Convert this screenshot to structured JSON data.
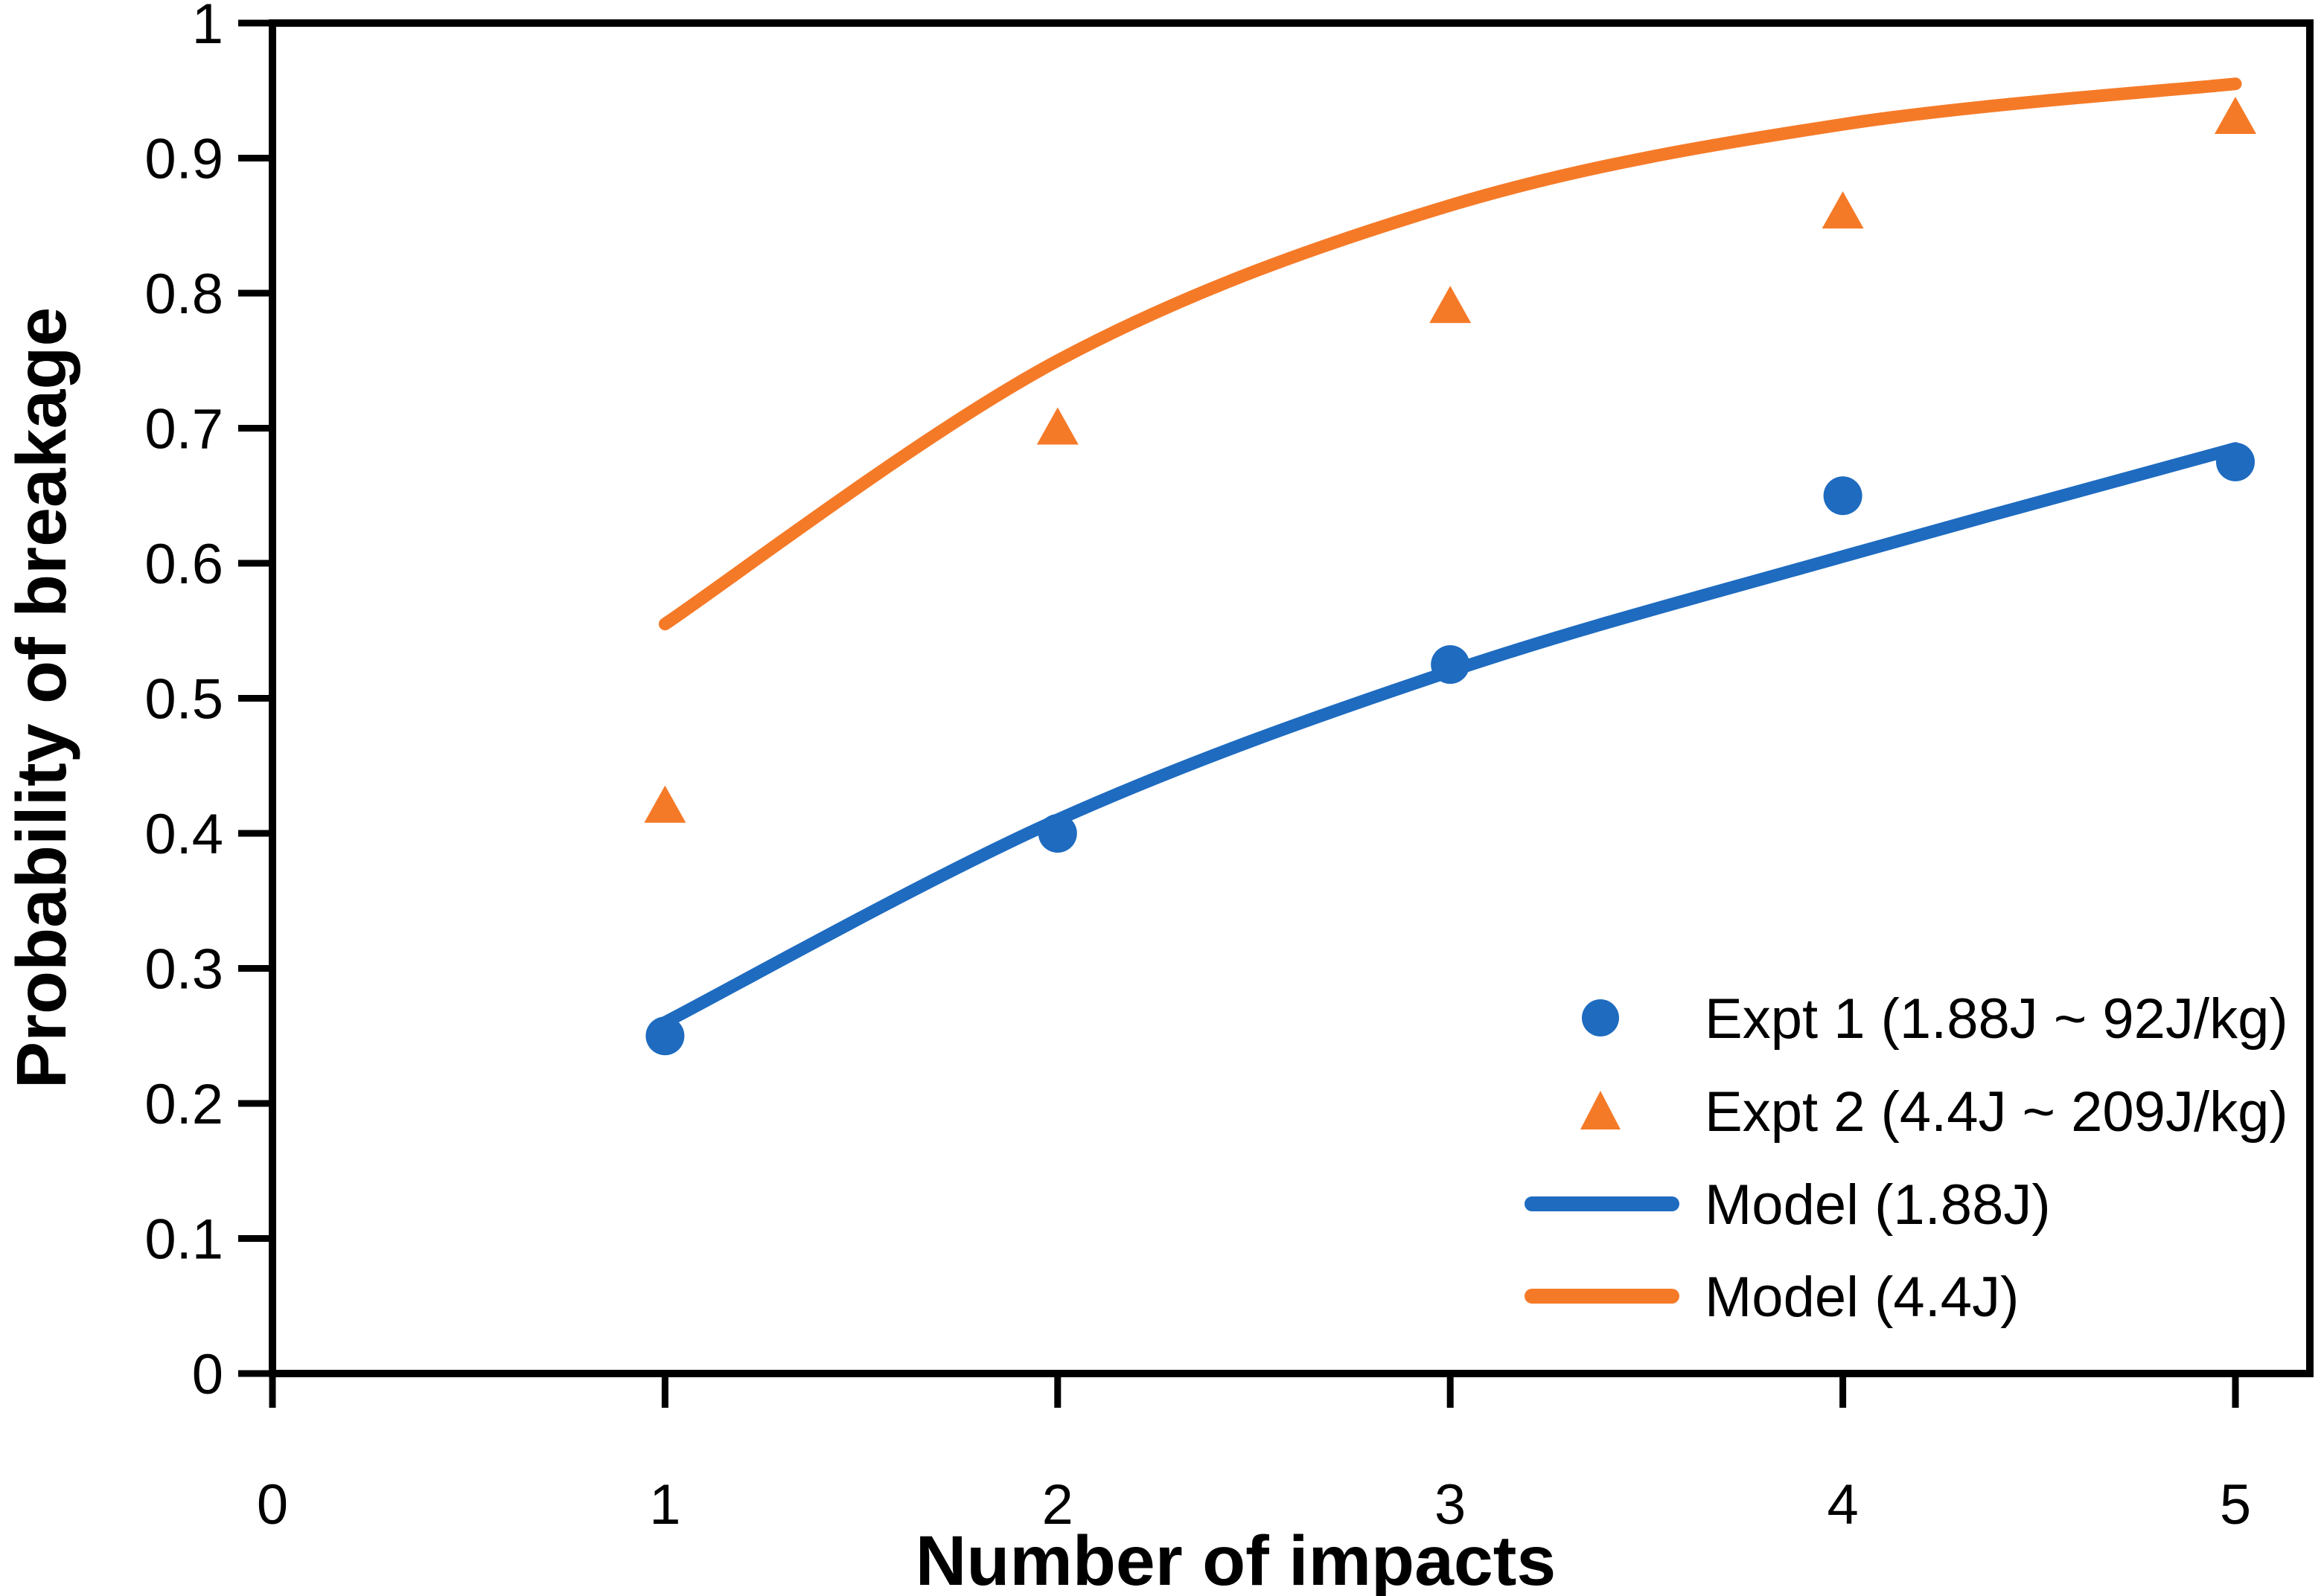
{
  "chart_data": {
    "type": "scatter",
    "xlabel": "Number of impacts",
    "ylabel": "Probability of breakage",
    "xlim": [
      0,
      5.19
    ],
    "ylim": [
      0,
      1
    ],
    "x_ticks": [
      0,
      1,
      2,
      3,
      4,
      5
    ],
    "y_tick_labels": [
      "0",
      "0.1",
      "0.2",
      "0.3",
      "0.4",
      "0.5",
      "0.6",
      "0.7",
      "0.8",
      "0.9",
      "1"
    ],
    "grid": false,
    "legend_position": "inside-lower-right",
    "x": [
      1,
      2,
      3,
      4,
      5
    ],
    "series": [
      {
        "name": "Expt 1 (1.88J ~ 92J/kg)",
        "kind": "scatter",
        "marker": "circle",
        "color": "#1E6BC0",
        "values": [
          0.25,
          0.4,
          0.525,
          0.65,
          0.675
        ]
      },
      {
        "name": "Expt 2 (4.4J ~ 209J/kg)",
        "kind": "scatter",
        "marker": "triangle",
        "color": "#F57A28",
        "values": [
          0.42,
          0.7,
          0.79,
          0.86,
          0.93
        ]
      },
      {
        "name": "Model (1.88J)",
        "kind": "line",
        "marker": "none",
        "color": "#1E6BC0",
        "values": [
          0.26,
          0.41,
          0.52,
          0.605,
          0.685
        ]
      },
      {
        "name": "Model (4.4J)",
        "kind": "line",
        "marker": "none",
        "color": "#F57A28",
        "values": [
          0.555,
          0.75,
          0.865,
          0.925,
          0.955
        ]
      }
    ],
    "axis_color": "#000000"
  }
}
